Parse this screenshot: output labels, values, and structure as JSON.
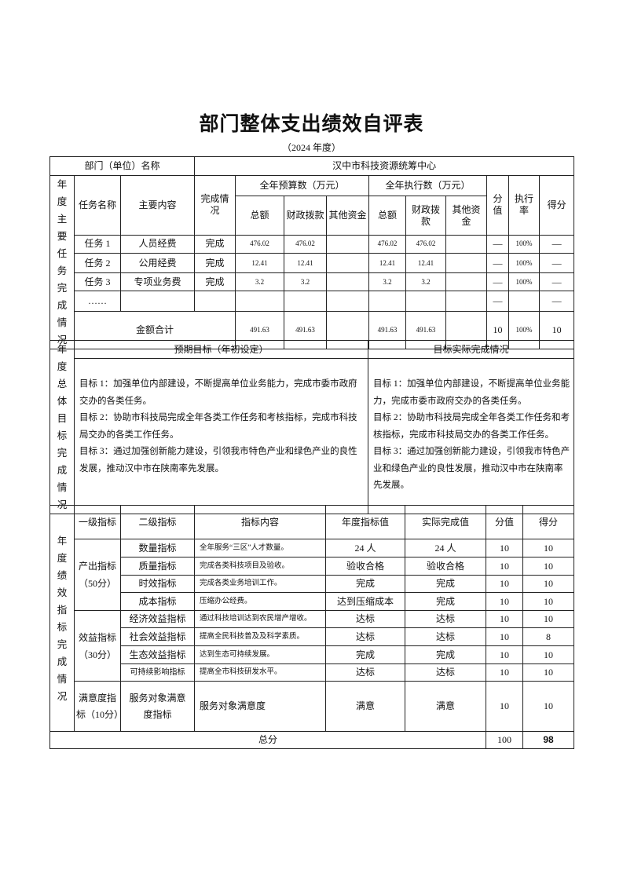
{
  "title": "部门整体支出绩效自评表",
  "subtitle": "（2024 年度）",
  "dept": {
    "label": "部门（单位）名称",
    "value": "汉中市科技资源统筹中心"
  },
  "section1": {
    "side_label": "年度主要任务完成情况",
    "headers": {
      "task_name": "任务名称",
      "content": "主要内容",
      "status": "完成情况",
      "budget": "全年预算数（万元）",
      "execution": "全年执行数（万元）",
      "total": "总额",
      "fiscal": "财政拨款",
      "other": "其他资金",
      "score_value": "分值",
      "exec_rate": "执行率",
      "score": "得分"
    },
    "rows": [
      {
        "task": "任务 1",
        "content": "人员经费",
        "status": "完成",
        "b_total": "476.02",
        "b_fiscal": "476.02",
        "b_other": "",
        "e_total": "476.02",
        "e_fiscal": "476.02",
        "e_other": "",
        "score_value": "—",
        "rate": "100%",
        "score": "—"
      },
      {
        "task": "任务 2",
        "content": "公用经费",
        "status": "完成",
        "b_total": "12.41",
        "b_fiscal": "12.41",
        "b_other": "",
        "e_total": "12.41",
        "e_fiscal": "12.41",
        "e_other": "",
        "score_value": "—",
        "rate": "100%",
        "score": "—"
      },
      {
        "task": "任务 3",
        "content": "专项业务费",
        "status": "完成",
        "b_total": "3.2",
        "b_fiscal": "3.2",
        "b_other": "",
        "e_total": "3.2",
        "e_fiscal": "3.2",
        "e_other": "",
        "score_value": "—",
        "rate": "100%",
        "score": "—"
      },
      {
        "task": "……",
        "content": "",
        "status": "",
        "b_total": "",
        "b_fiscal": "",
        "b_other": "",
        "e_total": "",
        "e_fiscal": "",
        "e_other": "",
        "score_value": "—",
        "rate": "",
        "score": "—"
      }
    ],
    "sum": {
      "label": "金额合计",
      "b_total": "491.63",
      "b_fiscal": "491.63",
      "e_total": "491.63",
      "e_fiscal": "491.63",
      "score_value": "10",
      "rate": "100%",
      "score": "10"
    }
  },
  "section2": {
    "side_label": "年度总体目标完成情况",
    "expected_header": "预期目标（年初设定）",
    "actual_header": "目标实际完成情况",
    "expected": "目标 1：加强单位内部建设，不断提高单位业务能力，完成市委市政府交办的各类任务。\n目标 2：协助市科技局完成全年各类工作任务和考核指标，完成市科技局交办的各类工作任务。\n目标 3：通过加强创新能力建设，引领我市特色产业和绿色产业的良性发展，推动汉中市在陕南率先发展。",
    "actual": "目标 1：加强单位内部建设，不断提高单位业务能力，完成市委市政府交办的各类任务。\n目标 2：协助市科技局完成全年各类工作任务和考核指标，完成市科技局交办的各类工作任务。\n目标 3：通过加强创新能力建设，引领我市特色产业和绿色产业的良性发展，推动汉中市在陕南率先发展。"
  },
  "section3": {
    "side_label": "年度绩效指标完成情况",
    "headers": {
      "level1": "一级指标",
      "level2": "二级指标",
      "content": "指标内容",
      "target": "年度指标值",
      "actual": "实际完成值",
      "score_value": "分值",
      "score": "得分"
    },
    "groups": {
      "output": "产出指标（50分）",
      "benefit": "效益指标（30分）",
      "satisfaction": "满意度指标（10分）"
    },
    "rows": [
      {
        "level2": "数量指标",
        "content": "全年服务“三区”人才数量。",
        "target": "24 人",
        "actual": "24 人",
        "score_value": "10",
        "score": "10"
      },
      {
        "level2": "质量指标",
        "content": "完成各类科技项目及验收。",
        "target": "验收合格",
        "actual": "验收合格",
        "score_value": "10",
        "score": "10"
      },
      {
        "level2": "时效指标",
        "content": "完成各类业务培训工作。",
        "target": "完成",
        "actual": "完成",
        "score_value": "10",
        "score": "10"
      },
      {
        "level2": "成本指标",
        "content": "压缩办公经费。",
        "target": "达到压缩成本",
        "actual": "完成",
        "score_value": "10",
        "score": "10"
      },
      {
        "level2": "经济效益指标",
        "content": "通过科技培训达到农民增产增收。",
        "target": "达标",
        "actual": "达标",
        "score_value": "10",
        "score": "10"
      },
      {
        "level2": "社会效益指标",
        "content": "提高全民科技普及及科学素质。",
        "target": "达标",
        "actual": "达标",
        "score_value": "10",
        "score": "8"
      },
      {
        "level2": "生态效益指标",
        "content": "达到生态可持续发展。",
        "target": "完成",
        "actual": "完成",
        "score_value": "10",
        "score": "10"
      },
      {
        "level2": "可持续影响指标",
        "content": "提高全市科技研发水平。",
        "target": "达标",
        "actual": "达标",
        "score_value": "10",
        "score": "10"
      },
      {
        "level2": "服务对象满意度指标",
        "content": "服务对象满意度",
        "target": "满意",
        "actual": "满意",
        "score_value": "10",
        "score": "10"
      }
    ],
    "total": {
      "label": "总分",
      "score_value": "100",
      "score": "98"
    }
  }
}
